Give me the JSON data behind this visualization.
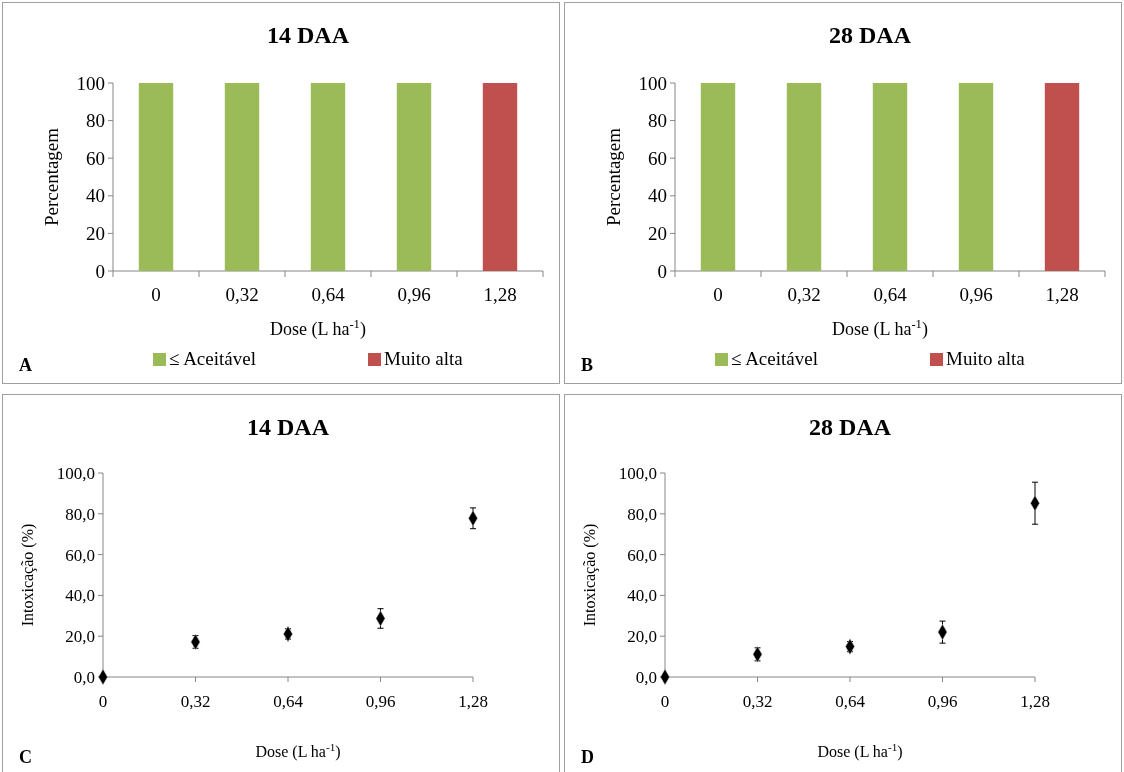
{
  "chart_data": [
    {
      "type": "bar",
      "title": "14 DAA",
      "xlabel": "Dose (L ha$^{-1}$)",
      "ylabel": "Percentagem",
      "categories": [
        "0",
        "0,32",
        "0,64",
        "0,96",
        "1,28"
      ],
      "stacked": true,
      "ylim": [
        0,
        100
      ],
      "yticks": [
        0,
        20,
        40,
        60,
        80,
        100
      ],
      "legend": "bottom",
      "annotations": [
        "A"
      ],
      "series": [
        {
          "name": "≤ Aceitável",
          "color": "#9bbb59",
          "values": [
            100,
            100,
            100,
            100,
            0
          ]
        },
        {
          "name": "Muito alta",
          "color": "#c0504d",
          "values": [
            0,
            0,
            0,
            0,
            100
          ]
        }
      ]
    },
    {
      "type": "bar",
      "title": "28 DAA",
      "xlabel": "Dose (L ha$^{-1}$)",
      "ylabel": "Percentagem",
      "categories": [
        "0",
        "0,32",
        "0,64",
        "0,96",
        "1,28"
      ],
      "stacked": true,
      "ylim": [
        0,
        100
      ],
      "yticks": [
        0,
        20,
        40,
        60,
        80,
        100
      ],
      "legend": "bottom",
      "annotations": [
        "B"
      ],
      "series": [
        {
          "name": "≤ Aceitável",
          "color": "#9bbb59",
          "values": [
            100,
            100,
            100,
            100,
            0
          ]
        },
        {
          "name": "Muito alta",
          "color": "#c0504d",
          "values": [
            0,
            0,
            0,
            0,
            100
          ]
        }
      ]
    },
    {
      "type": "scatter",
      "title": "14 DAA",
      "xlabel": "Dose (L ha$^{-1}$)",
      "ylabel": "Intoxicação (%)",
      "x": [
        0,
        0.32,
        0.64,
        0.96,
        1.28
      ],
      "xlim": [
        0,
        1.28
      ],
      "xticks": [
        0,
        {
          "value": 0.32,
          "label": "0,32"
        },
        {
          "value": 0.64,
          "label": "0,64"
        },
        {
          "value": 0.96,
          "label": "0,96"
        },
        {
          "value": 1.28,
          "label": "1,28"
        }
      ],
      "ylim": [
        0,
        100
      ],
      "yticks": [
        {
          "value": 0,
          "label": "0,0"
        },
        {
          "value": 20,
          "label": "20,0"
        },
        {
          "value": 40,
          "label": "40,0"
        },
        {
          "value": 60,
          "label": "60,0"
        },
        {
          "value": 80,
          "label": "80,0"
        },
        {
          "value": 100,
          "label": "100,0"
        }
      ],
      "marker": "diamond",
      "annotations": [
        "C"
      ],
      "series": [
        {
          "color": "#000000",
          "values": [
            0,
            17.2,
            21.1,
            28.7,
            77.8
          ],
          "errors": [
            null,
            3.1,
            2.5,
            4.8,
            5.1
          ]
        }
      ]
    },
    {
      "type": "scatter",
      "title": "28 DAA",
      "xlabel": "Dose (L ha$^{-1}$)",
      "ylabel": "Intoxicação (%)",
      "x": [
        0,
        0.32,
        0.64,
        0.96,
        1.28
      ],
      "xlim": [
        0,
        1.28
      ],
      "xticks": [
        0,
        {
          "value": 0.32,
          "label": "0,32"
        },
        {
          "value": 0.64,
          "label": "0,64"
        },
        {
          "value": 0.96,
          "label": "0,96"
        },
        {
          "value": 1.28,
          "label": "1,28"
        }
      ],
      "ylim": [
        0,
        100
      ],
      "yticks": [
        {
          "value": 0,
          "label": "0,0"
        },
        {
          "value": 20,
          "label": "20,0"
        },
        {
          "value": 40,
          "label": "40,0"
        },
        {
          "value": 60,
          "label": "60,0"
        },
        {
          "value": 80,
          "label": "80,0"
        },
        {
          "value": 100,
          "label": "100,0"
        }
      ],
      "marker": "diamond",
      "annotations": [
        "D"
      ],
      "series": [
        {
          "color": "#000000",
          "values": [
            0,
            11.1,
            14.9,
            22,
            85.2
          ],
          "errors": [
            null,
            3.2,
            2.5,
            5.4,
            10.3
          ]
        }
      ]
    }
  ]
}
